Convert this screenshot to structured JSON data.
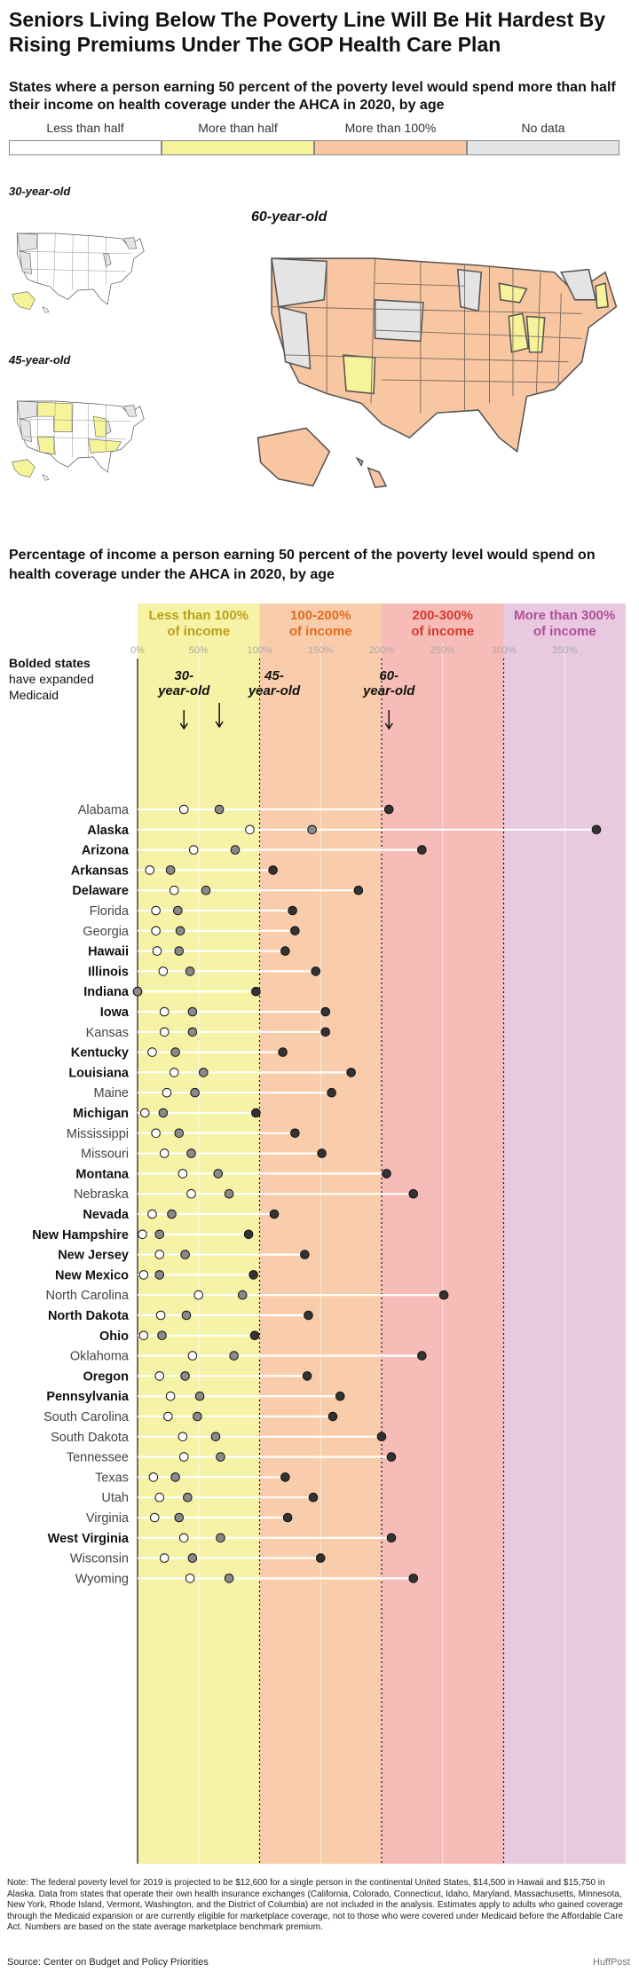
{
  "title": "Seniors Living Below The Poverty Line Will Be Hit Hardest By Rising Premiums Under The GOP Health Care Plan",
  "subtitle": "States where a person earning 50 percent of the poverty level would spend more than half their income on health coverage under the AHCA in 2020, by age",
  "legend": [
    {
      "label": "Less than half",
      "color": "#ffffff"
    },
    {
      "label": "More than half",
      "color": "#f6f39a"
    },
    {
      "label": "More than 100%",
      "color": "#f9c6a2"
    },
    {
      "label": "No data",
      "color": "#e4e4e4"
    }
  ],
  "maps": {
    "label_30": "30-year-old",
    "label_45": "45-year-old",
    "label_60": "60-year-old"
  },
  "section2_title": "Percentage of income a person earning 50 percent of the poverty level would spend on health coverage under the AHCA in 2020, by age",
  "chart_data": {
    "type": "scatter",
    "x_unit": "percent of income",
    "xlim": [
      0,
      400
    ],
    "x_ticks": [
      "0%",
      "50%",
      "100%",
      "150%",
      "200%",
      "250%",
      "300%",
      "350%"
    ],
    "bands": [
      {
        "label": "Less than 100% of income",
        "from": 0,
        "to": 100,
        "color": "#f6f2a6",
        "label_color": "#bba21a"
      },
      {
        "label": "100-200% of income",
        "from": 100,
        "to": 200,
        "color": "#f9cdab",
        "label_color": "#e36b1c"
      },
      {
        "label": "200-300% of income",
        "from": 200,
        "to": 300,
        "color": "#f7bcb7",
        "label_color": "#d8392c"
      },
      {
        "label": "More than 300% of income",
        "from": 300,
        "to": 400,
        "color": "#e8c9e0",
        "label_color": "#b24e9c"
      }
    ],
    "note": "Bolded states have expanded Medicaid",
    "series_names": [
      "30-year-old",
      "45-year-old",
      "60-year-old"
    ],
    "states": [
      {
        "name": "Alabama",
        "expanded": false,
        "v": [
          38,
          67,
          206
        ]
      },
      {
        "name": "Alaska",
        "expanded": true,
        "v": [
          92,
          143,
          376
        ]
      },
      {
        "name": "Arizona",
        "expanded": true,
        "v": [
          46,
          80,
          233
        ]
      },
      {
        "name": "Arkansas",
        "expanded": true,
        "v": [
          10,
          27,
          111
        ]
      },
      {
        "name": "Delaware",
        "expanded": true,
        "v": [
          30,
          56,
          181
        ]
      },
      {
        "name": "Florida",
        "expanded": false,
        "v": [
          15,
          33,
          127
        ]
      },
      {
        "name": "Georgia",
        "expanded": false,
        "v": [
          15,
          35,
          129
        ]
      },
      {
        "name": "Hawaii",
        "expanded": true,
        "v": [
          16,
          34,
          121
        ]
      },
      {
        "name": "Illinois",
        "expanded": true,
        "v": [
          21,
          43,
          146
        ]
      },
      {
        "name": "Indiana",
        "expanded": true,
        "v": [
          0,
          0,
          97
        ]
      },
      {
        "name": "Iowa",
        "expanded": true,
        "v": [
          22,
          45,
          154
        ]
      },
      {
        "name": "Kansas",
        "expanded": false,
        "v": [
          22,
          45,
          154
        ]
      },
      {
        "name": "Kentucky",
        "expanded": true,
        "v": [
          12,
          31,
          119
        ]
      },
      {
        "name": "Louisiana",
        "expanded": true,
        "v": [
          30,
          54,
          175
        ]
      },
      {
        "name": "Maine",
        "expanded": false,
        "v": [
          24,
          47,
          159
        ]
      },
      {
        "name": "Michigan",
        "expanded": true,
        "v": [
          6,
          21,
          97
        ]
      },
      {
        "name": "Mississippi",
        "expanded": false,
        "v": [
          15,
          34,
          129
        ]
      },
      {
        "name": "Missouri",
        "expanded": false,
        "v": [
          22,
          44,
          151
        ]
      },
      {
        "name": "Montana",
        "expanded": true,
        "v": [
          37,
          66,
          204
        ]
      },
      {
        "name": "Nebraska",
        "expanded": false,
        "v": [
          44,
          75,
          226
        ]
      },
      {
        "name": "Nevada",
        "expanded": true,
        "v": [
          12,
          28,
          112
        ]
      },
      {
        "name": "New Hampshire",
        "expanded": true,
        "v": [
          4,
          18,
          91
        ]
      },
      {
        "name": "New Jersey",
        "expanded": true,
        "v": [
          18,
          39,
          137
        ]
      },
      {
        "name": "New Mexico",
        "expanded": true,
        "v": [
          5,
          18,
          95
        ]
      },
      {
        "name": "North Carolina",
        "expanded": false,
        "v": [
          50,
          86,
          251
        ]
      },
      {
        "name": "North Dakota",
        "expanded": true,
        "v": [
          19,
          40,
          140
        ]
      },
      {
        "name": "Ohio",
        "expanded": true,
        "v": [
          5,
          20,
          96
        ]
      },
      {
        "name": "Oklahoma",
        "expanded": false,
        "v": [
          45,
          79,
          233
        ]
      },
      {
        "name": "Oregon",
        "expanded": true,
        "v": [
          18,
          39,
          139
        ]
      },
      {
        "name": "Pennsylvania",
        "expanded": true,
        "v": [
          27,
          51,
          166
        ]
      },
      {
        "name": "South Carolina",
        "expanded": false,
        "v": [
          25,
          49,
          160
        ]
      },
      {
        "name": "South Dakota",
        "expanded": false,
        "v": [
          37,
          64,
          200
        ]
      },
      {
        "name": "Tennessee",
        "expanded": false,
        "v": [
          38,
          68,
          208
        ]
      },
      {
        "name": "Texas",
        "expanded": false,
        "v": [
          13,
          31,
          121
        ]
      },
      {
        "name": "Utah",
        "expanded": false,
        "v": [
          18,
          41,
          144
        ]
      },
      {
        "name": "Virginia",
        "expanded": false,
        "v": [
          14,
          34,
          123
        ]
      },
      {
        "name": "West Virginia",
        "expanded": true,
        "v": [
          38,
          68,
          208
        ]
      },
      {
        "name": "Wisconsin",
        "expanded": false,
        "v": [
          22,
          45,
          150
        ]
      },
      {
        "name": "Wyoming",
        "expanded": false,
        "v": [
          43,
          75,
          226
        ]
      }
    ],
    "dot_colors": [
      "#ffffff",
      "#8a8a8a",
      "#333333"
    ]
  },
  "footnote": "Note: The federal poverty level for 2019 is projected to be $12,600 for a single person in the continental United States, $14,500 in Hawaii and $15,750 in Alaska. Data from states that operate their own health insurance exchanges (California, Colorado, Connecticut, Idaho, Maryland, Massachusetts, Minnesota, New York, Rhode Island, Vermont, Washington, and the District of Columbia) are not included in the analysis. Estimates apply to adults who gained coverage through the Medicaid expansion or are currently eligible for marketplace coverage, not to those who were covered under Medicaid before the Affordable Care Act. Numbers are based on the state average marketplace benchmark premium.",
  "source": "Source: Center on Budget and Policy Priorities",
  "credit": "HuffPost"
}
